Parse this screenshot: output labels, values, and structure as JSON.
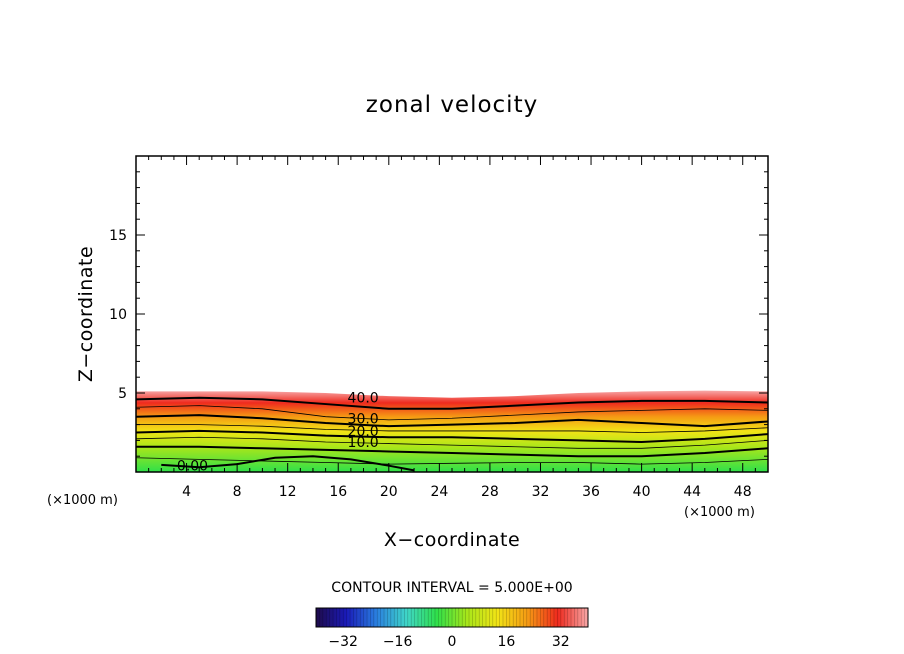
{
  "chart_data": {
    "type": "contour",
    "title": "zonal velocity",
    "xlabel": "X−coordinate",
    "ylabel": "Z−coordinate",
    "x_unit_label": "(×1000 m)",
    "y_unit_label": "(×1000 m)",
    "xlim": [
      0,
      50
    ],
    "ylim": [
      0,
      20
    ],
    "x_ticks": [
      4,
      8,
      12,
      16,
      20,
      24,
      28,
      32,
      36,
      40,
      44,
      48
    ],
    "y_ticks": [
      5,
      10,
      15
    ],
    "contour_interval_text": "CONTOUR INTERVAL = 5.000E+00",
    "contour_levels": [
      0,
      5,
      10,
      15,
      20,
      25,
      30,
      35,
      40,
      45
    ],
    "contour_labels": [
      {
        "text": "40.0",
        "x": 16.5,
        "z": 4.7
      },
      {
        "text": "30.0",
        "x": 16.5,
        "z": 3.4
      },
      {
        "text": "20.0",
        "x": 16.5,
        "z": 2.6
      },
      {
        "text": "10.0",
        "x": 16.5,
        "z": 1.9
      },
      {
        "text": "0.00",
        "x": 3.0,
        "z": 0.4
      }
    ],
    "level_curves": [
      {
        "level": 45,
        "x": [
          0,
          5,
          10,
          15,
          20,
          25,
          30,
          35,
          40,
          45,
          50
        ],
        "z": [
          5.1,
          5.1,
          5.1,
          5.0,
          4.8,
          4.7,
          4.8,
          5.0,
          5.1,
          5.15,
          5.1
        ]
      },
      {
        "level": 40,
        "x": [
          0,
          5,
          10,
          15,
          20,
          25,
          30,
          35,
          40,
          45,
          50
        ],
        "z": [
          4.6,
          4.7,
          4.6,
          4.3,
          4.0,
          4.0,
          4.2,
          4.4,
          4.5,
          4.5,
          4.4
        ]
      },
      {
        "level": 35,
        "x": [
          0,
          5,
          10,
          15,
          20,
          25,
          30,
          35,
          40,
          45,
          50
        ],
        "z": [
          4.1,
          4.2,
          4.0,
          3.5,
          3.3,
          3.4,
          3.6,
          3.8,
          3.9,
          4.0,
          3.9
        ]
      },
      {
        "level": 30,
        "x": [
          0,
          5,
          10,
          15,
          20,
          25,
          30,
          35,
          40,
          45,
          50
        ],
        "z": [
          3.5,
          3.6,
          3.4,
          3.1,
          2.9,
          3.0,
          3.1,
          3.3,
          3.1,
          2.9,
          3.2
        ]
      },
      {
        "level": 25,
        "x": [
          0,
          5,
          10,
          15,
          20,
          25,
          30,
          35,
          40,
          45,
          50
        ],
        "z": [
          3.0,
          3.0,
          2.9,
          2.7,
          2.6,
          2.6,
          2.6,
          2.6,
          2.5,
          2.6,
          2.8
        ]
      },
      {
        "level": 20,
        "x": [
          0,
          5,
          10,
          15,
          20,
          25,
          30,
          35,
          40,
          45,
          50
        ],
        "z": [
          2.5,
          2.6,
          2.5,
          2.3,
          2.2,
          2.2,
          2.1,
          2.0,
          1.9,
          2.1,
          2.4
        ]
      },
      {
        "level": 15,
        "x": [
          0,
          5,
          10,
          15,
          20,
          25,
          30,
          35,
          40,
          45,
          50
        ],
        "z": [
          2.1,
          2.2,
          2.1,
          1.9,
          1.8,
          1.7,
          1.6,
          1.5,
          1.5,
          1.7,
          2.0
        ]
      },
      {
        "level": 10,
        "x": [
          0,
          5,
          10,
          15,
          20,
          25,
          30,
          35,
          40,
          45,
          50
        ],
        "z": [
          1.6,
          1.6,
          1.5,
          1.4,
          1.3,
          1.2,
          1.1,
          1.0,
          1.0,
          1.2,
          1.5
        ]
      },
      {
        "level": 5,
        "x": [
          0,
          5,
          10,
          15,
          20,
          25,
          30,
          35,
          40,
          45,
          50
        ],
        "z": [
          0.9,
          0.8,
          0.7,
          0.6,
          0.5,
          0.55,
          0.6,
          0.6,
          0.5,
          0.6,
          0.8
        ]
      },
      {
        "level": 0,
        "x": [
          2,
          5,
          8,
          11,
          14,
          17,
          20,
          22
        ],
        "z": [
          0.45,
          0.3,
          0.5,
          0.9,
          1.0,
          0.8,
          0.4,
          0.1
        ]
      }
    ],
    "colorbar": {
      "range": [
        -40,
        40
      ],
      "ticks": [
        -32,
        -16,
        0,
        16,
        32
      ],
      "tick_labels": [
        "−32",
        "−16",
        "0",
        "16",
        "32"
      ],
      "colormap_stops": [
        "#1e0b4a",
        "#1a1ab8",
        "#2a7fe0",
        "#3fd6c8",
        "#2fe04a",
        "#a8e61a",
        "#f2e416",
        "#f59a14",
        "#ef2a1e",
        "#f7a8a8"
      ]
    }
  }
}
